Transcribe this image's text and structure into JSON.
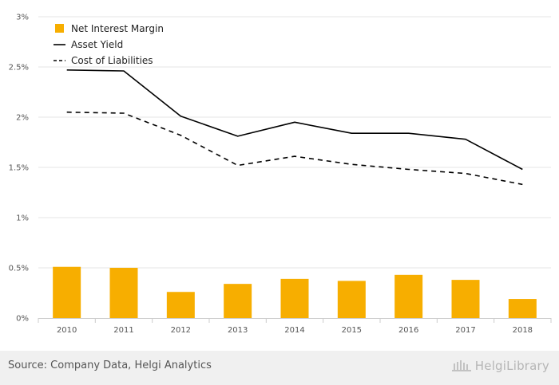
{
  "chart_data": {
    "type": "bar+line",
    "categories": [
      "2010",
      "2011",
      "2012",
      "2013",
      "2014",
      "2015",
      "2016",
      "2017",
      "2018"
    ],
    "series": [
      {
        "name": "Net Interest Margin",
        "kind": "bar",
        "color": "#f7ae00",
        "values": [
          0.51,
          0.5,
          0.26,
          0.34,
          0.39,
          0.37,
          0.43,
          0.38,
          0.19
        ]
      },
      {
        "name": "Asset Yield",
        "kind": "line",
        "style": "solid",
        "color": "#000000",
        "values": [
          2.47,
          2.46,
          2.01,
          1.81,
          1.95,
          1.84,
          1.84,
          1.78,
          1.48
        ]
      },
      {
        "name": "Cost of Liabilities",
        "kind": "line",
        "style": "dashed",
        "color": "#000000",
        "values": [
          2.05,
          2.04,
          1.82,
          1.52,
          1.61,
          1.53,
          1.48,
          1.44,
          1.33
        ]
      }
    ],
    "yticks": [
      "0%",
      "0.5%",
      "1%",
      "1.5%",
      "2%",
      "2.5%",
      "3%"
    ],
    "ytick_values": [
      0,
      0.5,
      1,
      1.5,
      2,
      2.5,
      3
    ],
    "ylim": [
      0,
      3
    ],
    "unit": "%",
    "grid": true,
    "legend": "top-left"
  },
  "footer": {
    "source": "Source: Company Data, Helgi Analytics",
    "brand": "HelgiLibrary"
  }
}
